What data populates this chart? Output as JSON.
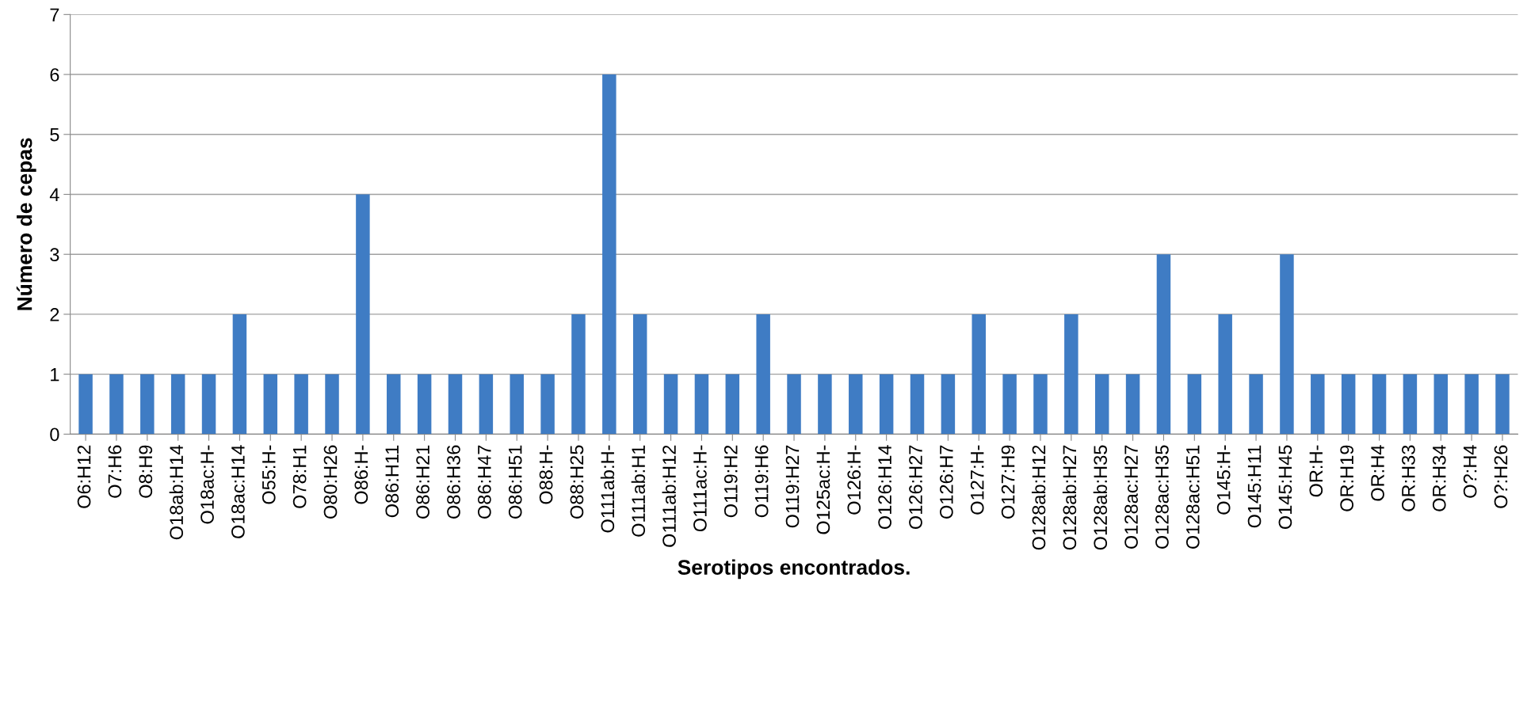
{
  "chart_data": {
    "type": "bar",
    "xlabel": "Serotipos encontrados.",
    "ylabel": "Número de cepas",
    "categories": [
      "O6:H12",
      "O7:H6",
      "O8:H9",
      "O18ab:H14",
      "O18ac:H-",
      "O18ac:H14",
      "O55:H-",
      "O78:H1",
      "O80:H26",
      "O86:H-",
      "O86:H11",
      "O86:H21",
      "O86:H36",
      "O86:H47",
      "O86:H51",
      "O88:H-",
      "O88:H25",
      "O111ab:H-",
      "O111ab:H1",
      "O111ab:H12",
      "O111ac:H-",
      "O119:H2",
      "O119:H6",
      "O119:H27",
      "O125ac:H-",
      "O126:H-",
      "O126:H14",
      "O126:H27",
      "O126:H7",
      "O127:H-",
      "O127:H9",
      "O128ab:H12",
      "O128ab:H27",
      "O128ab:H35",
      "O128ac:H27",
      "O128ac:H35",
      "O128ac:H51",
      "O145:H-",
      "O145:H11",
      "O145:H45",
      "OR:H-",
      "OR:H19",
      "OR:H4",
      "OR:H33",
      "OR:H34",
      "O?:H4",
      "O?:H26"
    ],
    "values": [
      1,
      1,
      1,
      1,
      1,
      2,
      1,
      1,
      1,
      4,
      1,
      1,
      1,
      1,
      1,
      1,
      2,
      6,
      2,
      1,
      1,
      1,
      2,
      1,
      1,
      1,
      1,
      1,
      1,
      2,
      1,
      1,
      2,
      1,
      1,
      3,
      1,
      2,
      1,
      3,
      1,
      1,
      1,
      1,
      1,
      1,
      1
    ],
    "color": "#3f7cc4",
    "ylim": [
      0,
      7
    ],
    "yticks": [
      0,
      1,
      2,
      3,
      4,
      5,
      6,
      7
    ],
    "grid": "y"
  }
}
